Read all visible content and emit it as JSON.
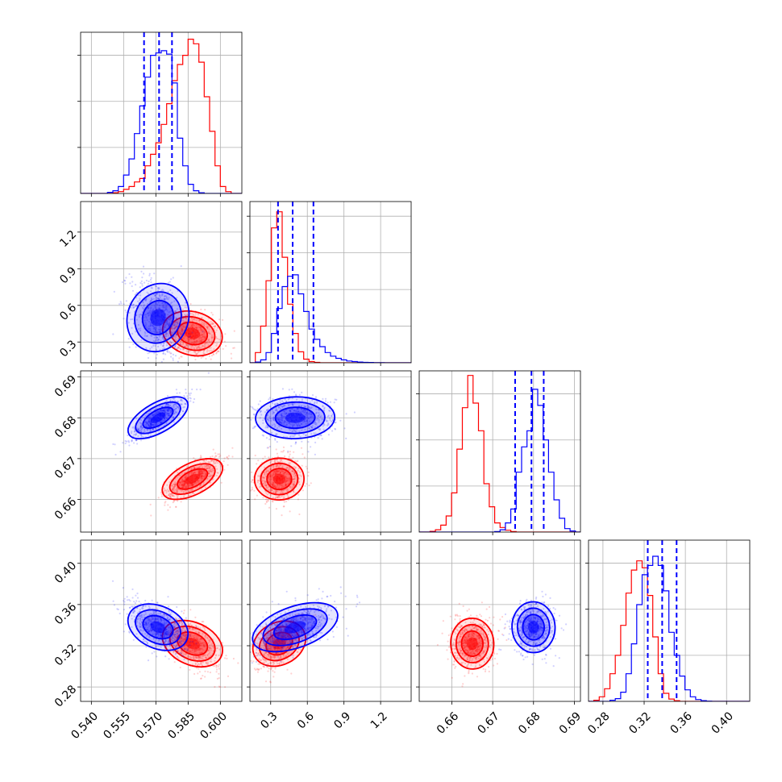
{
  "chart_data": {
    "type": "corner",
    "grid": true,
    "colors": {
      "blue": "#0000ff",
      "red": "#ff0000"
    },
    "series": [
      {
        "color": "#0000ff",
        "means": [
          0.571,
          0.5,
          0.68,
          0.338
        ],
        "sds": [
          0.0065,
          0.16,
          0.0026,
          0.0125
        ],
        "quantile_lines": [
          [
            0.5645,
            0.5715,
            0.5775
          ],
          [
            0.36,
            0.48,
            0.65
          ],
          [
            0.6755,
            0.6795,
            0.6825
          ],
          [
            0.3235,
            0.3375,
            0.3515
          ]
        ]
      },
      {
        "color": "#ff0000",
        "means": [
          0.587,
          0.37,
          0.665,
          0.322
        ],
        "sds": [
          0.0065,
          0.1,
          0.0026,
          0.0125
        ],
        "quantile_lines": null
      }
    ],
    "panels": [
      {
        "row": 0,
        "col": 0,
        "kind": "hist",
        "param": 0
      },
      {
        "row": 1,
        "col": 0,
        "kind": "scatter",
        "x_param": 0,
        "y_param": 1
      },
      {
        "row": 1,
        "col": 1,
        "kind": "hist",
        "param": 1
      },
      {
        "row": 2,
        "col": 0,
        "kind": "scatter",
        "x_param": 0,
        "y_param": 2
      },
      {
        "row": 2,
        "col": 1,
        "kind": "scatter",
        "x_param": 1,
        "y_param": 2
      },
      {
        "row": 2,
        "col": 2,
        "kind": "hist",
        "param": 2
      },
      {
        "row": 3,
        "col": 0,
        "kind": "scatter",
        "x_param": 0,
        "y_param": 3
      },
      {
        "row": 3,
        "col": 1,
        "kind": "scatter",
        "x_param": 1,
        "y_param": 3
      },
      {
        "row": 3,
        "col": 2,
        "kind": "scatter",
        "x_param": 2,
        "y_param": 3
      },
      {
        "row": 3,
        "col": 3,
        "kind": "hist",
        "param": 3
      }
    ],
    "axes": [
      {
        "range": [
          0.535,
          0.61
        ],
        "ticks": [
          0.54,
          0.555,
          0.57,
          0.585,
          0.6
        ],
        "tick_labels": [
          "0.540",
          "0.555",
          "0.570",
          "0.585",
          "0.600"
        ]
      },
      {
        "range": [
          0.13,
          1.45
        ],
        "ticks": [
          0.3,
          0.6,
          0.9,
          1.2
        ],
        "tick_labels": [
          "0.3",
          "0.6",
          "0.9",
          "1.2"
        ]
      },
      {
        "range": [
          0.652,
          0.6915
        ],
        "ticks": [
          0.66,
          0.67,
          0.68,
          0.69
        ],
        "tick_labels": [
          "0.66",
          "0.67",
          "0.68",
          "0.69"
        ]
      },
      {
        "range": [
          0.266,
          0.4225
        ],
        "ticks": [
          0.28,
          0.32,
          0.36,
          0.4
        ],
        "tick_labels": [
          "0.28",
          "0.32",
          "0.36",
          "0.40"
        ]
      }
    ],
    "histograms": [
      {
        "bins": [
          0.535,
          0.5375,
          0.54,
          0.5425,
          0.545,
          0.5475,
          0.55,
          0.5525,
          0.555,
          0.5575,
          0.56,
          0.5625,
          0.565,
          0.5675,
          0.57,
          0.5725,
          0.575,
          0.5775,
          0.58,
          0.5825,
          0.585,
          0.5875,
          0.59,
          0.5925,
          0.595,
          0.5975,
          0.6,
          0.6025,
          0.605,
          0.6075,
          0.61
        ],
        "blue": [
          0,
          0,
          0,
          0,
          0,
          5,
          12,
          30,
          80,
          150,
          260,
          380,
          505,
          600,
          610,
          620,
          605,
          480,
          240,
          120,
          40,
          12,
          3,
          0,
          0,
          0,
          0,
          0,
          0,
          0
        ],
        "red": [
          0,
          0,
          0,
          0,
          0,
          0,
          3,
          8,
          18,
          30,
          50,
          65,
          120,
          170,
          220,
          300,
          390,
          490,
          560,
          600,
          670,
          650,
          570,
          420,
          270,
          120,
          30,
          8,
          0,
          0
        ],
        "ymax": 700
      },
      {
        "bins": [
          0.13,
          0.174,
          0.218,
          0.262,
          0.306,
          0.35,
          0.394,
          0.438,
          0.482,
          0.526,
          0.57,
          0.614,
          0.658,
          0.702,
          0.746,
          0.79,
          0.834,
          0.878,
          0.922,
          0.966,
          1.01,
          1.054,
          1.098,
          1.142,
          1.186,
          1.23,
          1.274,
          1.318,
          1.362,
          1.406,
          1.45
        ],
        "blue": [
          0,
          5,
          20,
          70,
          200,
          370,
          520,
          590,
          600,
          470,
          350,
          230,
          160,
          110,
          70,
          45,
          30,
          20,
          12,
          8,
          5,
          3,
          2,
          1,
          1,
          0,
          0,
          0,
          0,
          0
        ],
        "red": [
          0,
          70,
          250,
          560,
          920,
          1030,
          720,
          400,
          200,
          75,
          25,
          8,
          3,
          0,
          0,
          0,
          0,
          0,
          0,
          0,
          0,
          0,
          0,
          0,
          0,
          0,
          0,
          0,
          0,
          0
        ],
        "ymax": 1100
      },
      {
        "bins": [
          0.652,
          0.65332,
          0.65464,
          0.65596,
          0.65728,
          0.6586,
          0.65992,
          0.66124,
          0.66256,
          0.66388,
          0.6652,
          0.66652,
          0.66784,
          0.66916,
          0.67048,
          0.6718,
          0.67312,
          0.67444,
          0.67576,
          0.67708,
          0.6784,
          0.67972,
          0.68104,
          0.68236,
          0.68368,
          0.685,
          0.68632,
          0.68764,
          0.68896,
          0.69028,
          0.6916
        ],
        "blue": [
          0,
          0,
          0,
          0,
          0,
          0,
          0,
          0,
          0,
          0,
          0,
          0,
          0,
          0,
          2,
          10,
          40,
          100,
          260,
          370,
          440,
          620,
          550,
          400,
          260,
          140,
          60,
          15,
          5,
          0
        ],
        "red": [
          0,
          0,
          3,
          10,
          30,
          70,
          170,
          360,
          540,
          680,
          560,
          440,
          210,
          110,
          40,
          20,
          8,
          2,
          0,
          0,
          0,
          0,
          0,
          0,
          0,
          0,
          0,
          0,
          0,
          0
        ],
        "ymax": 700
      },
      {
        "bins": [
          0.266,
          0.2712,
          0.2764,
          0.2816,
          0.2868,
          0.292,
          0.2972,
          0.3024,
          0.3076,
          0.3128,
          0.318,
          0.3232,
          0.3284,
          0.3336,
          0.3388,
          0.344,
          0.3492,
          0.3544,
          0.3596,
          0.3648,
          0.37,
          0.3752,
          0.3804,
          0.3856,
          0.3908,
          0.396,
          0.4012,
          0.4064,
          0.4116,
          0.4168,
          0.422
        ],
        "blue": [
          0,
          0,
          0,
          0,
          5,
          12,
          40,
          120,
          250,
          420,
          550,
          590,
          630,
          590,
          480,
          300,
          200,
          110,
          50,
          20,
          8,
          3,
          1,
          0,
          0,
          0,
          0,
          0,
          0,
          0
        ],
        "red": [
          0,
          5,
          20,
          55,
          120,
          200,
          330,
          470,
          570,
          610,
          580,
          460,
          280,
          120,
          35,
          10,
          3,
          0,
          0,
          0,
          0,
          0,
          0,
          0,
          0,
          0,
          0,
          0,
          0,
          0
        ],
        "ymax": 700
      }
    ]
  }
}
